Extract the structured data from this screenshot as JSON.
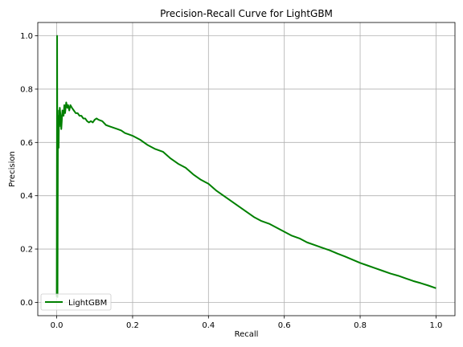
{
  "chart_data": {
    "type": "line",
    "title": "Precision-Recall Curve for LightGBM",
    "xlabel": "Recall",
    "ylabel": "Precision",
    "xlim": [
      -0.05,
      1.05
    ],
    "ylim": [
      -0.05,
      1.05
    ],
    "xticks": [
      0.0,
      0.2,
      0.4,
      0.6,
      0.8,
      1.0
    ],
    "xtick_labels": [
      "0.0",
      "0.2",
      "0.4",
      "0.6",
      "0.8",
      "1.0"
    ],
    "yticks": [
      0.0,
      0.2,
      0.4,
      0.6,
      0.8,
      1.0
    ],
    "ytick_labels": [
      "0.0",
      "0.2",
      "0.4",
      "0.6",
      "0.8",
      "1.0"
    ],
    "grid": true,
    "legend_position": "lower-left",
    "series": [
      {
        "name": "LightGBM",
        "color": "#008000",
        "x": [
          0.0,
          0.001,
          0.002,
          0.003,
          0.004,
          0.005,
          0.006,
          0.007,
          0.008,
          0.01,
          0.012,
          0.015,
          0.018,
          0.02,
          0.022,
          0.025,
          0.028,
          0.03,
          0.033,
          0.036,
          0.04,
          0.045,
          0.05,
          0.055,
          0.06,
          0.065,
          0.07,
          0.075,
          0.08,
          0.085,
          0.09,
          0.095,
          0.1,
          0.105,
          0.11,
          0.12,
          0.13,
          0.14,
          0.15,
          0.16,
          0.17,
          0.18,
          0.19,
          0.2,
          0.22,
          0.24,
          0.26,
          0.28,
          0.3,
          0.32,
          0.34,
          0.36,
          0.38,
          0.4,
          0.42,
          0.44,
          0.46,
          0.48,
          0.5,
          0.52,
          0.54,
          0.56,
          0.58,
          0.6,
          0.62,
          0.64,
          0.66,
          0.68,
          0.7,
          0.72,
          0.74,
          0.76,
          0.78,
          0.8,
          0.82,
          0.84,
          0.86,
          0.88,
          0.9,
          0.92,
          0.94,
          0.96,
          0.98,
          1.0
        ],
        "y": [
          0.02,
          1.0,
          0.02,
          0.6,
          0.7,
          0.58,
          0.72,
          0.66,
          0.73,
          0.7,
          0.65,
          0.72,
          0.7,
          0.74,
          0.71,
          0.75,
          0.73,
          0.74,
          0.72,
          0.74,
          0.73,
          0.72,
          0.71,
          0.71,
          0.7,
          0.7,
          0.69,
          0.69,
          0.68,
          0.675,
          0.68,
          0.675,
          0.685,
          0.69,
          0.685,
          0.68,
          0.665,
          0.66,
          0.655,
          0.65,
          0.645,
          0.635,
          0.63,
          0.625,
          0.61,
          0.59,
          0.575,
          0.565,
          0.54,
          0.52,
          0.505,
          0.48,
          0.46,
          0.445,
          0.42,
          0.4,
          0.38,
          0.36,
          0.34,
          0.32,
          0.305,
          0.295,
          0.28,
          0.265,
          0.25,
          0.24,
          0.225,
          0.215,
          0.205,
          0.195,
          0.183,
          0.172,
          0.16,
          0.148,
          0.138,
          0.128,
          0.118,
          0.108,
          0.1,
          0.09,
          0.08,
          0.072,
          0.063,
          0.053
        ]
      }
    ]
  }
}
